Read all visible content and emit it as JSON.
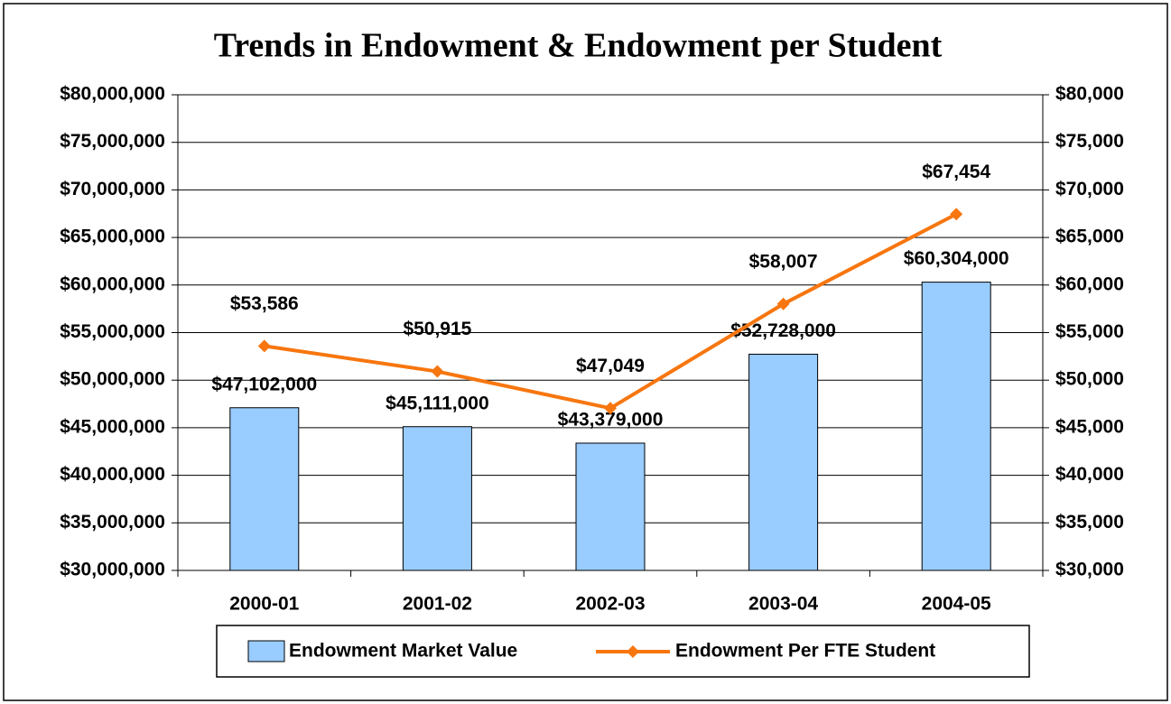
{
  "chart_data": {
    "type": "combo",
    "title": "Trends in Endowment & Endowment per Student",
    "categories": [
      "2000-01",
      "2001-02",
      "2002-03",
      "2003-04",
      "2004-05"
    ],
    "series": [
      {
        "name": "Endowment Market Value",
        "type": "bar",
        "color": "#99ccff",
        "values": [
          47102000,
          45111000,
          43379000,
          52728000,
          60304000
        ],
        "value_labels": [
          "$47,102,000",
          "$45,111,000",
          "$43,379,000",
          "$52,728,000",
          "$60,304,000"
        ]
      },
      {
        "name": "Endowment Per FTE Student",
        "type": "line",
        "axis": "y2",
        "color": "#f7760f",
        "values": [
          53586,
          50915,
          47049,
          58007,
          67454
        ],
        "value_labels": [
          "$53,586",
          "$50,915",
          "$47,049",
          "$58,007",
          "$67,454"
        ]
      }
    ],
    "ylim": [
      30000000,
      80000000
    ],
    "yticks": [
      {
        "value": 30000000,
        "label": "$30,000,000"
      },
      {
        "value": 35000000,
        "label": "$35,000,000"
      },
      {
        "value": 40000000,
        "label": "$40,000,000"
      },
      {
        "value": 45000000,
        "label": "$45,000,000"
      },
      {
        "value": 50000000,
        "label": "$50,000,000"
      },
      {
        "value": 55000000,
        "label": "$55,000,000"
      },
      {
        "value": 60000000,
        "label": "$60,000,000"
      },
      {
        "value": 65000000,
        "label": "$65,000,000"
      },
      {
        "value": 70000000,
        "label": "$70,000,000"
      },
      {
        "value": 75000000,
        "label": "$75,000,000"
      },
      {
        "value": 80000000,
        "label": "$80,000,000"
      }
    ],
    "y2lim": [
      30000,
      80000
    ],
    "y2ticks": [
      {
        "value": 30000,
        "label": "$30,000"
      },
      {
        "value": 35000,
        "label": "$35,000"
      },
      {
        "value": 40000,
        "label": "$40,000"
      },
      {
        "value": 45000,
        "label": "$45,000"
      },
      {
        "value": 50000,
        "label": "$50,000"
      },
      {
        "value": 55000,
        "label": "$55,000"
      },
      {
        "value": 60000,
        "label": "$60,000"
      },
      {
        "value": 65000,
        "label": "$65,000"
      },
      {
        "value": 70000,
        "label": "$70,000"
      },
      {
        "value": 75000,
        "label": "$75,000"
      },
      {
        "value": 80000,
        "label": "$80,000"
      }
    ],
    "grid": true,
    "legend": "bottom"
  }
}
